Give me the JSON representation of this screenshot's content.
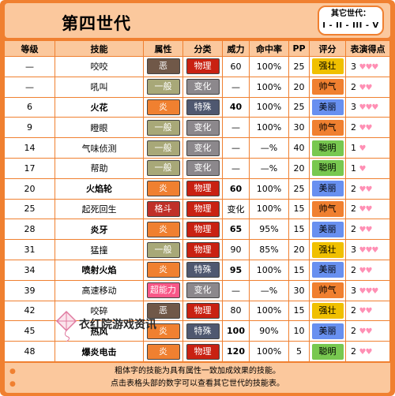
{
  "header": {
    "title": "第四世代",
    "other_gen_label": "其它世代：",
    "other_gen_links": "I - II - III - V"
  },
  "columns": [
    "等级",
    "技能",
    "属性",
    "分类",
    "威力",
    "命中率",
    "PP",
    "评分",
    "表演得点"
  ],
  "rows": [
    {
      "level": "—",
      "move": "咬咬",
      "bold": false,
      "type": "恶",
      "type_class": "t-dark",
      "cat": "物理",
      "cat_class": "c-phys",
      "power": "60",
      "power_bold": false,
      "acc": "100%",
      "pp": "25",
      "contest": "强壮",
      "contest_class": "k-tough",
      "score": "3",
      "hearts": "♥♥♥"
    },
    {
      "level": "—",
      "move": "吼叫",
      "bold": false,
      "type": "一般",
      "type_class": "t-normal",
      "cat": "变化",
      "cat_class": "c-status",
      "power": "—",
      "power_bold": false,
      "acc": "100%",
      "pp": "20",
      "contest": "帅气",
      "contest_class": "k-cool",
      "score": "2",
      "hearts": "♥♥"
    },
    {
      "level": "6",
      "move": "火花",
      "bold": true,
      "type": "炎",
      "type_class": "t-fire",
      "cat": "特殊",
      "cat_class": "c-special",
      "power": "40",
      "power_bold": true,
      "acc": "100%",
      "pp": "25",
      "contest": "美丽",
      "contest_class": "k-beauty",
      "score": "3",
      "hearts": "♥♥♥"
    },
    {
      "level": "9",
      "move": "瞪眼",
      "bold": false,
      "type": "一般",
      "type_class": "t-normal",
      "cat": "变化",
      "cat_class": "c-status",
      "power": "—",
      "power_bold": false,
      "acc": "100%",
      "pp": "30",
      "contest": "帅气",
      "contest_class": "k-cool",
      "score": "2",
      "hearts": "♥♥"
    },
    {
      "level": "14",
      "move": "气味侦测",
      "bold": false,
      "type": "一般",
      "type_class": "t-normal",
      "cat": "变化",
      "cat_class": "c-status",
      "power": "—",
      "power_bold": false,
      "acc": "—%",
      "pp": "40",
      "contest": "聪明",
      "contest_class": "k-smart",
      "score": "1",
      "hearts": "♥"
    },
    {
      "level": "17",
      "move": "帮助",
      "bold": false,
      "type": "一般",
      "type_class": "t-normal",
      "cat": "变化",
      "cat_class": "c-status",
      "power": "—",
      "power_bold": false,
      "acc": "—%",
      "pp": "20",
      "contest": "聪明",
      "contest_class": "k-smart",
      "score": "1",
      "hearts": "♥"
    },
    {
      "level": "20",
      "move": "火焰轮",
      "bold": true,
      "type": "炎",
      "type_class": "t-fire",
      "cat": "物理",
      "cat_class": "c-phys",
      "power": "60",
      "power_bold": true,
      "acc": "100%",
      "pp": "25",
      "contest": "美丽",
      "contest_class": "k-beauty",
      "score": "2",
      "hearts": "♥♥"
    },
    {
      "level": "25",
      "move": "起死回生",
      "bold": false,
      "type": "格斗",
      "type_class": "t-fight",
      "cat": "物理",
      "cat_class": "c-phys",
      "power": "变化",
      "power_bold": false,
      "acc": "100%",
      "pp": "15",
      "contest": "帅气",
      "contest_class": "k-cool",
      "score": "2",
      "hearts": "♥♥"
    },
    {
      "level": "28",
      "move": "炎牙",
      "bold": true,
      "type": "炎",
      "type_class": "t-fire",
      "cat": "物理",
      "cat_class": "c-phys",
      "power": "65",
      "power_bold": true,
      "acc": "95%",
      "pp": "15",
      "contest": "美丽",
      "contest_class": "k-beauty",
      "score": "2",
      "hearts": "♥♥"
    },
    {
      "level": "31",
      "move": "猛撞",
      "bold": false,
      "type": "一般",
      "type_class": "t-normal",
      "cat": "物理",
      "cat_class": "c-phys",
      "power": "90",
      "power_bold": false,
      "acc": "85%",
      "pp": "20",
      "contest": "强壮",
      "contest_class": "k-tough",
      "score": "3",
      "hearts": "♥♥♥"
    },
    {
      "level": "34",
      "move": "喷射火焰",
      "bold": true,
      "type": "炎",
      "type_class": "t-fire",
      "cat": "特殊",
      "cat_class": "c-special",
      "power": "95",
      "power_bold": true,
      "acc": "100%",
      "pp": "15",
      "contest": "美丽",
      "contest_class": "k-beauty",
      "score": "2",
      "hearts": "♥♥"
    },
    {
      "level": "39",
      "move": "高速移动",
      "bold": false,
      "type": "超能力",
      "type_class": "t-psychic",
      "cat": "变化",
      "cat_class": "c-status",
      "power": "—",
      "power_bold": false,
      "acc": "—%",
      "pp": "30",
      "contest": "帅气",
      "contest_class": "k-cool",
      "score": "3",
      "hearts": "♥♥♥"
    },
    {
      "level": "42",
      "move": "咬碎",
      "bold": false,
      "type": "恶",
      "type_class": "t-dark",
      "cat": "物理",
      "cat_class": "c-phys",
      "power": "80",
      "power_bold": false,
      "acc": "100%",
      "pp": "15",
      "contest": "强壮",
      "contest_class": "k-tough",
      "score": "2",
      "hearts": "♥♥"
    },
    {
      "level": "45",
      "move": "热风",
      "bold": true,
      "type": "炎",
      "type_class": "t-fire",
      "cat": "特殊",
      "cat_class": "c-special",
      "power": "100",
      "power_bold": true,
      "acc": "90%",
      "pp": "10",
      "contest": "美丽",
      "contest_class": "k-beauty",
      "score": "2",
      "hearts": "♥♥"
    },
    {
      "level": "48",
      "move": "爆炎电击",
      "bold": true,
      "type": "炎",
      "type_class": "t-fire",
      "cat": "物理",
      "cat_class": "c-phys",
      "power": "120",
      "power_bold": true,
      "acc": "100%",
      "pp": "5",
      "contest": "聪明",
      "contest_class": "k-smart",
      "score": "2",
      "hearts": "♥♥"
    }
  ],
  "footer": {
    "line1": "粗体字的技能为具有属性一致加成效果的技能。",
    "line2": "点击表格头部的数字可以查看其它世代的技能表。",
    "bullet": "●"
  },
  "watermark": {
    "text": "衣红院游戏资讯",
    "icon": "kite-icon"
  }
}
